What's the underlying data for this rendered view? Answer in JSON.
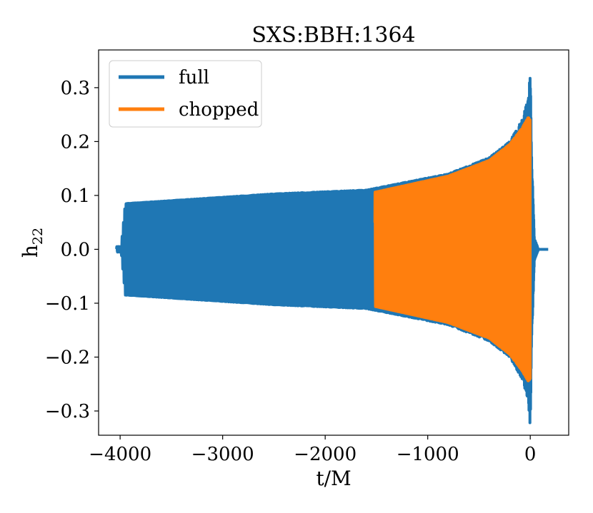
{
  "chart_data": {
    "type": "line",
    "title": "SXS:BBH:1364",
    "xlabel": "t/M",
    "ylabel_main": "h",
    "ylabel_sub": "22",
    "xlim": [
      -4210,
      375
    ],
    "ylim": [
      -0.345,
      0.37
    ],
    "xticks": [
      -4000,
      -3000,
      -2000,
      -1000,
      0
    ],
    "xtick_labels": [
      "−4000",
      "−3000",
      "−2000",
      "−1000",
      "0"
    ],
    "yticks": [
      -0.3,
      -0.2,
      -0.1,
      0.0,
      0.1,
      0.2,
      0.3
    ],
    "ytick_labels": [
      "−0.3",
      "−0.2",
      "−0.1",
      "0.0",
      "0.1",
      "0.2",
      "0.3"
    ],
    "legend": {
      "position": "top-left",
      "entries": [
        {
          "label": "full",
          "color": "#1f77b4"
        },
        {
          "label": "chopped",
          "color": "#ff7f0e"
        }
      ]
    },
    "series": [
      {
        "name": "full",
        "color": "#1f77b4",
        "t_range": [
          -4035,
          175
        ],
        "envelope_peaks": [
          {
            "t": -3990,
            "amp": 0.005
          },
          {
            "t": -3950,
            "amp": 0.085
          },
          {
            "t": -3700,
            "amp": 0.088
          },
          {
            "t": -2500,
            "amp": 0.103
          },
          {
            "t": -1600,
            "amp": 0.11
          },
          {
            "t": -800,
            "amp": 0.14
          },
          {
            "t": -400,
            "amp": 0.17
          },
          {
            "t": -200,
            "amp": 0.2
          },
          {
            "t": -80,
            "amp": 0.24
          },
          {
            "t": -20,
            "amp": 0.28
          },
          {
            "t": 0,
            "amp": 0.33
          },
          {
            "t": 15,
            "amp": 0.17
          },
          {
            "t": 40,
            "amp": 0.02
          },
          {
            "t": 80,
            "amp": 0.0
          }
        ],
        "phase_model": {
          "tc": 85,
          "k": 450,
          "n": 0.625
        }
      },
      {
        "name": "chopped",
        "color": "#ff7f0e",
        "t_range": [
          -1515,
          0
        ],
        "envelope_peaks": [
          {
            "t": -1515,
            "amp": 0.106
          },
          {
            "t": -800,
            "amp": 0.136
          },
          {
            "t": -400,
            "amp": 0.165
          },
          {
            "t": -200,
            "amp": 0.195
          },
          {
            "t": -80,
            "amp": 0.225
          },
          {
            "t": -20,
            "amp": 0.245
          },
          {
            "t": 0,
            "amp": 0.24
          }
        ],
        "phase_model": {
          "tc": 85,
          "k": 450,
          "n": 0.625
        }
      }
    ]
  }
}
